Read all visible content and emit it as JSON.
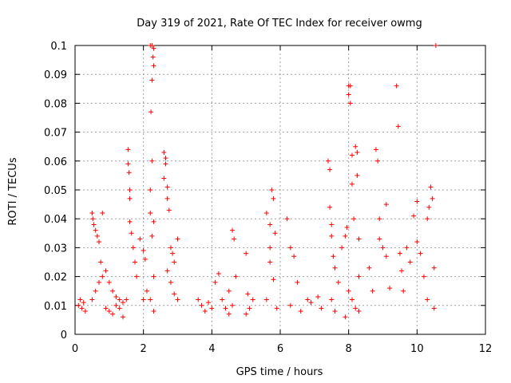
{
  "chart_data": {
    "type": "scatter",
    "title": "Day 319 of 2021, Rate Of TEC Index for receiver owmg",
    "xlabel": "GPS time / hours",
    "ylabel": "ROTI / TECUs",
    "xlim": [
      0,
      12
    ],
    "ylim": [
      0,
      0.1
    ],
    "x_ticks": [
      0,
      2,
      4,
      6,
      8,
      10,
      12
    ],
    "x_tick_labels": [
      "0",
      "2",
      "4",
      "6",
      "8",
      "10",
      "12"
    ],
    "y_ticks": [
      0,
      0.01,
      0.02,
      0.03,
      0.04,
      0.05,
      0.06,
      0.07,
      0.08,
      0.09,
      0.1
    ],
    "y_tick_labels": [
      "0",
      "0.01",
      "0.02",
      "0.03",
      "0.04",
      "0.05",
      "0.06",
      "0.07",
      "0.08",
      "0.09",
      "0.1"
    ],
    "grid": true,
    "marker": "+",
    "color": "#ff0000",
    "series": [
      {
        "points": [
          [
            0.1,
            0.01
          ],
          [
            0.15,
            0.012
          ],
          [
            0.2,
            0.009
          ],
          [
            0.25,
            0.011
          ],
          [
            0.3,
            0.008
          ],
          [
            0.5,
            0.042
          ],
          [
            0.52,
            0.04
          ],
          [
            0.55,
            0.038
          ],
          [
            0.6,
            0.036
          ],
          [
            0.65,
            0.034
          ],
          [
            0.7,
            0.032
          ],
          [
            0.75,
            0.025
          ],
          [
            0.8,
            0.042
          ],
          [
            0.5,
            0.012
          ],
          [
            0.6,
            0.015
          ],
          [
            0.7,
            0.018
          ],
          [
            0.8,
            0.02
          ],
          [
            0.9,
            0.022
          ],
          [
            1.0,
            0.018
          ],
          [
            1.1,
            0.015
          ],
          [
            1.2,
            0.013
          ],
          [
            1.3,
            0.012
          ],
          [
            1.4,
            0.011
          ],
          [
            1.5,
            0.012
          ],
          [
            0.9,
            0.009
          ],
          [
            1.0,
            0.008
          ],
          [
            1.1,
            0.007
          ],
          [
            1.2,
            0.01
          ],
          [
            1.3,
            0.009
          ],
          [
            1.4,
            0.006
          ],
          [
            1.55,
            0.064
          ],
          [
            1.55,
            0.059
          ],
          [
            1.58,
            0.056
          ],
          [
            1.6,
            0.05
          ],
          [
            1.6,
            0.047
          ],
          [
            1.6,
            0.039
          ],
          [
            1.65,
            0.035
          ],
          [
            1.7,
            0.03
          ],
          [
            1.75,
            0.025
          ],
          [
            1.8,
            0.02
          ],
          [
            1.9,
            0.033
          ],
          [
            2.0,
            0.029
          ],
          [
            2.05,
            0.026
          ],
          [
            2.1,
            0.015
          ],
          [
            2.0,
            0.012
          ],
          [
            2.2,
            0.1
          ],
          [
            2.25,
            0.1
          ],
          [
            2.3,
            0.099
          ],
          [
            2.28,
            0.096
          ],
          [
            2.3,
            0.093
          ],
          [
            2.25,
            0.088
          ],
          [
            2.22,
            0.077
          ],
          [
            2.25,
            0.06
          ],
          [
            2.2,
            0.05
          ],
          [
            2.2,
            0.042
          ],
          [
            2.3,
            0.039
          ],
          [
            2.25,
            0.034
          ],
          [
            2.3,
            0.02
          ],
          [
            2.2,
            0.012
          ],
          [
            2.3,
            0.008
          ],
          [
            2.6,
            0.063
          ],
          [
            2.65,
            0.061
          ],
          [
            2.65,
            0.059
          ],
          [
            2.6,
            0.054
          ],
          [
            2.7,
            0.051
          ],
          [
            2.7,
            0.047
          ],
          [
            2.75,
            0.043
          ],
          [
            2.8,
            0.03
          ],
          [
            2.85,
            0.028
          ],
          [
            2.9,
            0.025
          ],
          [
            2.7,
            0.022
          ],
          [
            2.8,
            0.018
          ],
          [
            2.9,
            0.014
          ],
          [
            3.0,
            0.033
          ],
          [
            3.0,
            0.012
          ],
          [
            3.6,
            0.012
          ],
          [
            3.7,
            0.01
          ],
          [
            3.8,
            0.008
          ],
          [
            3.9,
            0.011
          ],
          [
            4.0,
            0.009
          ],
          [
            4.1,
            0.018
          ],
          [
            4.2,
            0.021
          ],
          [
            4.3,
            0.012
          ],
          [
            4.4,
            0.009
          ],
          [
            4.5,
            0.015
          ],
          [
            4.6,
            0.036
          ],
          [
            4.65,
            0.033
          ],
          [
            4.7,
            0.02
          ],
          [
            4.6,
            0.01
          ],
          [
            4.5,
            0.007
          ],
          [
            5.0,
            0.028
          ],
          [
            5.05,
            0.014
          ],
          [
            5.1,
            0.009
          ],
          [
            5.2,
            0.012
          ],
          [
            5.0,
            0.007
          ],
          [
            5.6,
            0.042
          ],
          [
            5.7,
            0.038
          ],
          [
            5.75,
            0.05
          ],
          [
            5.8,
            0.047
          ],
          [
            5.85,
            0.035
          ],
          [
            5.7,
            0.03
          ],
          [
            5.7,
            0.025
          ],
          [
            5.8,
            0.019
          ],
          [
            5.6,
            0.012
          ],
          [
            5.9,
            0.009
          ],
          [
            6.2,
            0.04
          ],
          [
            6.3,
            0.03
          ],
          [
            6.4,
            0.027
          ],
          [
            6.5,
            0.018
          ],
          [
            6.3,
            0.01
          ],
          [
            6.6,
            0.008
          ],
          [
            6.8,
            0.012
          ],
          [
            6.9,
            0.011
          ],
          [
            7.1,
            0.013
          ],
          [
            7.2,
            0.009
          ],
          [
            7.4,
            0.06
          ],
          [
            7.45,
            0.057
          ],
          [
            7.45,
            0.044
          ],
          [
            7.5,
            0.038
          ],
          [
            7.5,
            0.034
          ],
          [
            7.55,
            0.027
          ],
          [
            7.6,
            0.023
          ],
          [
            7.7,
            0.018
          ],
          [
            7.5,
            0.012
          ],
          [
            7.6,
            0.008
          ],
          [
            7.8,
            0.03
          ],
          [
            7.9,
            0.034
          ],
          [
            7.95,
            0.037
          ],
          [
            8.0,
            0.086
          ],
          [
            8.05,
            0.086
          ],
          [
            8.0,
            0.083
          ],
          [
            8.05,
            0.08
          ],
          [
            8.1,
            0.062
          ],
          [
            8.1,
            0.052
          ],
          [
            8.15,
            0.04
          ],
          [
            8.2,
            0.065
          ],
          [
            8.25,
            0.063
          ],
          [
            8.25,
            0.055
          ],
          [
            8.3,
            0.033
          ],
          [
            8.3,
            0.02
          ],
          [
            8.0,
            0.015
          ],
          [
            8.1,
            0.012
          ],
          [
            8.2,
            0.009
          ],
          [
            7.9,
            0.006
          ],
          [
            8.3,
            0.008
          ],
          [
            8.6,
            0.023
          ],
          [
            8.7,
            0.015
          ],
          [
            8.8,
            0.064
          ],
          [
            8.85,
            0.06
          ],
          [
            8.9,
            0.04
          ],
          [
            8.9,
            0.033
          ],
          [
            9.0,
            0.03
          ],
          [
            9.1,
            0.027
          ],
          [
            9.1,
            0.045
          ],
          [
            9.2,
            0.016
          ],
          [
            9.4,
            0.086
          ],
          [
            9.45,
            0.072
          ],
          [
            9.5,
            0.028
          ],
          [
            9.55,
            0.022
          ],
          [
            9.6,
            0.015
          ],
          [
            9.7,
            0.03
          ],
          [
            9.8,
            0.025
          ],
          [
            9.9,
            0.041
          ],
          [
            10.0,
            0.046
          ],
          [
            10.0,
            0.032
          ],
          [
            10.1,
            0.028
          ],
          [
            10.2,
            0.02
          ],
          [
            10.3,
            0.04
          ],
          [
            10.35,
            0.044
          ],
          [
            10.4,
            0.051
          ],
          [
            10.45,
            0.047
          ],
          [
            10.5,
            0.023
          ],
          [
            10.3,
            0.012
          ],
          [
            10.5,
            0.009
          ],
          [
            10.55,
            0.1
          ]
        ]
      }
    ]
  }
}
